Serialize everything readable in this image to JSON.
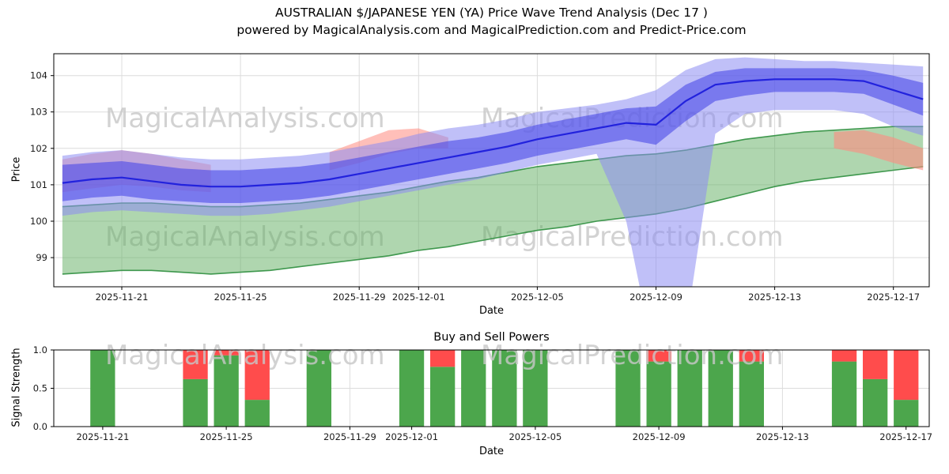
{
  "title": {
    "line1": "AUSTRALIAN $/JAPANESE YEN (YA) Price Wave Trend Analysis (Dec 17 )",
    "line2": "powered by MagicalAnalysis.com and MagicalPrediction.com and Predict-Price.com"
  },
  "watermarks": {
    "left": "MagicalAnalysis.com",
    "right": "MagicalPrediction.com",
    "color": "#c8c8c8"
  },
  "chart_data": [
    {
      "type": "area",
      "title": "",
      "xlabel": "Date",
      "ylabel": "Price",
      "ylim": [
        98.2,
        104.6
      ],
      "yticks": [
        {
          "v": 99,
          "label": "99"
        },
        {
          "v": 100,
          "label": "100"
        },
        {
          "v": 101,
          "label": "101"
        },
        {
          "v": 102,
          "label": "102"
        },
        {
          "v": 103,
          "label": "103"
        },
        {
          "v": 104,
          "label": "104"
        }
      ],
      "xlim": [
        "2025-11-18T17:00:00Z",
        "2025-12-18T05:00:00Z"
      ],
      "xticks": [
        {
          "date": "2025-11-21",
          "label": "2025-11-21"
        },
        {
          "date": "2025-11-25",
          "label": "2025-11-25"
        },
        {
          "date": "2025-11-29",
          "label": "2025-11-29"
        },
        {
          "date": "2025-12-01",
          "label": "2025-12-01"
        },
        {
          "date": "2025-12-05",
          "label": "2025-12-05"
        },
        {
          "date": "2025-12-09",
          "label": "2025-12-09"
        },
        {
          "date": "2025-12-13",
          "label": "2025-12-13"
        },
        {
          "date": "2025-12-17",
          "label": "2025-12-17"
        }
      ],
      "x": [
        "2025-11-19",
        "2025-11-20",
        "2025-11-21",
        "2025-11-22",
        "2025-11-23",
        "2025-11-24",
        "2025-11-25",
        "2025-11-26",
        "2025-11-27",
        "2025-11-28",
        "2025-11-29",
        "2025-11-30",
        "2025-12-01",
        "2025-12-02",
        "2025-12-03",
        "2025-12-04",
        "2025-12-05",
        "2025-12-06",
        "2025-12-07",
        "2025-12-08",
        "2025-12-09",
        "2025-12-10",
        "2025-12-11",
        "2025-12-12",
        "2025-12-13",
        "2025-12-14",
        "2025-12-15",
        "2025-12-16",
        "2025-12-17",
        "2025-12-18"
      ],
      "bands": [
        {
          "name": "green-trend-channel",
          "fill": "#5fae5f",
          "opacity": 0.5,
          "edge": "#2f8f3f",
          "upper": [
            100.4,
            100.45,
            100.5,
            100.5,
            100.45,
            100.4,
            100.4,
            100.45,
            100.5,
            100.6,
            100.7,
            100.8,
            100.95,
            101.1,
            101.2,
            101.35,
            101.5,
            101.6,
            101.7,
            101.8,
            101.85,
            101.95,
            102.1,
            102.25,
            102.35,
            102.45,
            102.5,
            102.55,
            102.6,
            102.6
          ],
          "lower": [
            98.55,
            98.6,
            98.65,
            98.65,
            98.6,
            98.55,
            98.6,
            98.65,
            98.75,
            98.85,
            98.95,
            99.05,
            99.2,
            99.3,
            99.45,
            99.6,
            99.75,
            99.85,
            100.0,
            100.1,
            100.2,
            100.35,
            100.55,
            100.75,
            100.95,
            101.1,
            101.2,
            101.3,
            101.4,
            101.5
          ]
        },
        {
          "name": "red-wave-early",
          "fill": "#ff8a80",
          "opacity": 0.5,
          "x": [
            "2025-11-19",
            "2025-11-20",
            "2025-11-21",
            "2025-11-22",
            "2025-11-23",
            "2025-11-24"
          ],
          "upper": [
            101.7,
            101.85,
            101.95,
            101.85,
            101.7,
            101.55
          ],
          "lower": [
            100.8,
            100.9,
            101.0,
            100.95,
            100.85,
            100.8
          ]
        },
        {
          "name": "red-wave-mid",
          "fill": "#ff8a80",
          "opacity": 0.55,
          "x": [
            "2025-11-28",
            "2025-11-29",
            "2025-11-30",
            "2025-12-01",
            "2025-12-02"
          ],
          "upper": [
            101.9,
            102.2,
            102.5,
            102.55,
            102.3
          ],
          "lower": [
            101.4,
            101.6,
            101.85,
            102.0,
            102.0
          ]
        },
        {
          "name": "red-wave-late",
          "fill": "#ff8a80",
          "opacity": 0.6,
          "x": [
            "2025-12-15",
            "2025-12-16",
            "2025-12-17",
            "2025-12-18"
          ],
          "upper": [
            102.45,
            102.5,
            102.3,
            102.0
          ],
          "lower": [
            102.0,
            101.85,
            101.6,
            101.4
          ]
        },
        {
          "name": "blue-outer-band",
          "fill": "#8c8cf2",
          "opacity": 0.55,
          "upper": [
            101.8,
            101.9,
            101.95,
            101.85,
            101.75,
            101.7,
            101.7,
            101.75,
            101.8,
            101.9,
            102.05,
            102.2,
            102.4,
            102.55,
            102.65,
            102.8,
            103.0,
            103.1,
            103.2,
            103.35,
            103.6,
            104.15,
            104.45,
            104.5,
            104.45,
            104.4,
            104.4,
            104.35,
            104.3,
            104.25
          ],
          "lower": [
            100.15,
            100.25,
            100.3,
            100.25,
            100.2,
            100.15,
            100.15,
            100.2,
            100.3,
            100.4,
            100.55,
            100.7,
            100.85,
            101.0,
            101.15,
            101.35,
            101.55,
            101.7,
            101.85,
            100.0,
            96.0,
            97.0,
            102.4,
            102.95,
            103.05,
            103.05,
            103.05,
            102.95,
            102.6,
            102.35
          ]
        },
        {
          "name": "blue-inner-band",
          "fill": "#4a4ae8",
          "opacity": 0.6,
          "upper": [
            101.55,
            101.6,
            101.65,
            101.55,
            101.45,
            101.4,
            101.4,
            101.45,
            101.5,
            101.6,
            101.75,
            101.9,
            102.05,
            102.2,
            102.3,
            102.45,
            102.65,
            102.8,
            102.95,
            103.1,
            103.15,
            103.75,
            104.1,
            104.2,
            104.2,
            104.2,
            104.2,
            104.15,
            104.0,
            103.8
          ],
          "lower": [
            100.55,
            100.65,
            100.7,
            100.6,
            100.55,
            100.5,
            100.5,
            100.55,
            100.6,
            100.7,
            100.85,
            101.0,
            101.15,
            101.3,
            101.45,
            101.6,
            101.8,
            101.95,
            102.1,
            102.25,
            102.1,
            102.75,
            103.3,
            103.45,
            103.55,
            103.55,
            103.55,
            103.5,
            103.2,
            102.9
          ]
        }
      ],
      "median": {
        "name": "price-median",
        "color": "#2222dd",
        "values": [
          101.05,
          101.15,
          101.2,
          101.1,
          101.0,
          100.95,
          100.95,
          101.0,
          101.05,
          101.15,
          101.3,
          101.45,
          101.6,
          101.75,
          101.9,
          102.05,
          102.25,
          102.4,
          102.55,
          102.7,
          102.65,
          103.3,
          103.75,
          103.85,
          103.9,
          103.9,
          103.9,
          103.85,
          103.6,
          103.35
        ]
      }
    },
    {
      "type": "bar",
      "title": "Buy and Sell Powers",
      "xlabel": "Date",
      "ylabel": "Signal Strength",
      "ylim": [
        0,
        1.0
      ],
      "yticks": [
        {
          "v": 0,
          "label": "0.0"
        },
        {
          "v": 0.5,
          "label": "0.5"
        },
        {
          "v": 1,
          "label": "1.0"
        }
      ],
      "xlim": [
        "2025-11-19T10:00:00Z",
        "2025-12-17T18:00:00Z"
      ],
      "xticks": [
        {
          "date": "2025-11-21",
          "label": "2025-11-21"
        },
        {
          "date": "2025-11-25",
          "label": "2025-11-25"
        },
        {
          "date": "2025-11-29",
          "label": "2025-11-29"
        },
        {
          "date": "2025-12-01",
          "label": "2025-12-01"
        },
        {
          "date": "2025-12-05",
          "label": "2025-12-05"
        },
        {
          "date": "2025-12-09",
          "label": "2025-12-09"
        },
        {
          "date": "2025-12-13",
          "label": "2025-12-13"
        },
        {
          "date": "2025-12-17",
          "label": "2025-12-17"
        }
      ],
      "categories": [
        "2025-11-21",
        "2025-11-24",
        "2025-11-25",
        "2025-11-26",
        "2025-11-28",
        "2025-12-01",
        "2025-12-02",
        "2025-12-03",
        "2025-12-04",
        "2025-12-05",
        "2025-12-08",
        "2025-12-09",
        "2025-12-10",
        "2025-12-11",
        "2025-12-12",
        "2025-12-15",
        "2025-12-16",
        "2025-12-17"
      ],
      "bar_width_days": 0.8,
      "series": [
        {
          "name": "Buy",
          "color": "#4CA64C",
          "values": [
            1.0,
            0.62,
            0.93,
            0.35,
            1.0,
            1.0,
            0.78,
            1.0,
            1.0,
            1.0,
            1.0,
            0.85,
            1.0,
            1.0,
            0.85,
            0.85,
            0.62,
            0.35
          ]
        },
        {
          "name": "Sell",
          "color": "#FF4C4C",
          "values": [
            0.0,
            0.38,
            0.07,
            0.65,
            0.0,
            0.0,
            0.22,
            0.0,
            0.0,
            0.0,
            0.0,
            0.15,
            0.0,
            0.0,
            0.15,
            0.15,
            0.38,
            0.65
          ]
        }
      ]
    }
  ]
}
